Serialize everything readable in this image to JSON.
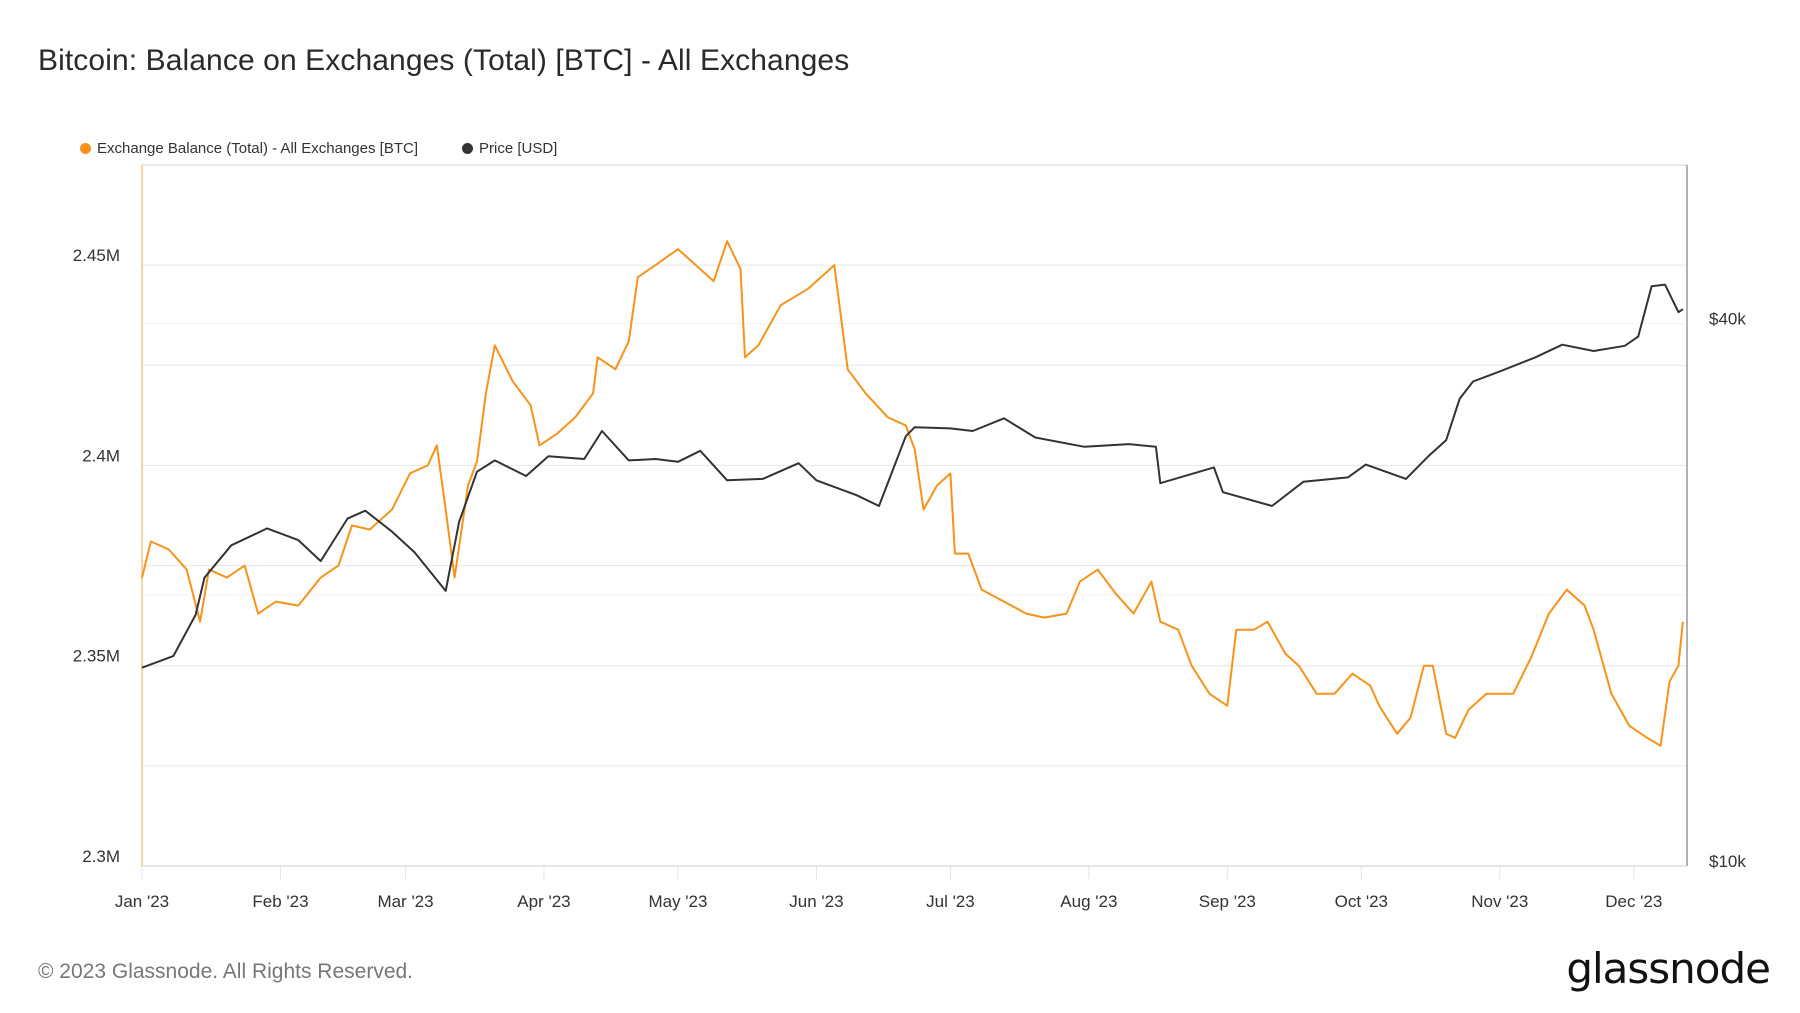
{
  "title": "Bitcoin: Balance on Exchanges (Total) [BTC] - All Exchanges",
  "footer": "© 2023 Glassnode. All Rights Reserved.",
  "logo": "glassnode",
  "colors": {
    "balance": "#f7931a",
    "price": "#333333",
    "grid": "#e6e6e6"
  },
  "chart_data": {
    "type": "line",
    "title": "Bitcoin: Balance on Exchanges (Total) [BTC] - All Exchanges",
    "legend_position": "top-left",
    "grid": true,
    "x_range": [
      "2023-01-01",
      "2023-12-12"
    ],
    "x_ticks": [
      {
        "date": "2023-01-01",
        "label": "Jan '23"
      },
      {
        "date": "2023-02-01",
        "label": "Feb '23"
      },
      {
        "date": "2023-03-01",
        "label": "Mar '23"
      },
      {
        "date": "2023-04-01",
        "label": "Apr '23"
      },
      {
        "date": "2023-05-01",
        "label": "May '23"
      },
      {
        "date": "2023-06-01",
        "label": "Jun '23"
      },
      {
        "date": "2023-07-01",
        "label": "Jul '23"
      },
      {
        "date": "2023-08-01",
        "label": "Aug '23"
      },
      {
        "date": "2023-09-01",
        "label": "Sep '23"
      },
      {
        "date": "2023-10-01",
        "label": "Oct '23"
      },
      {
        "date": "2023-11-01",
        "label": "Nov '23"
      },
      {
        "date": "2023-12-01",
        "label": "Dec '23"
      }
    ],
    "y_left": {
      "scale": "linear",
      "range": [
        2300000,
        2475000
      ],
      "ticks": [
        {
          "value": 2300000,
          "label": "2.3M"
        },
        {
          "value": 2350000,
          "label": "2.35M"
        },
        {
          "value": 2400000,
          "label": "2.4M"
        },
        {
          "value": 2450000,
          "label": "2.45M"
        }
      ],
      "gridlines": [
        2325000,
        2350000,
        2375000,
        2400000,
        2425000,
        2450000
      ]
    },
    "y_right": {
      "scale": "log",
      "range": [
        10000,
        60000
      ],
      "ticks": [
        {
          "value": 10000,
          "label": "$10k"
        },
        {
          "value": 40000,
          "label": "$40k"
        }
      ],
      "gridlines": [
        20000,
        40000
      ]
    },
    "series": [
      {
        "name": "Exchange Balance (Total) - All Exchanges [BTC]",
        "axis": "left",
        "color": "#f7931a",
        "points": [
          [
            "2023-01-01",
            2372000
          ],
          [
            "2023-01-03",
            2381000
          ],
          [
            "2023-01-07",
            2379000
          ],
          [
            "2023-01-11",
            2374000
          ],
          [
            "2023-01-14",
            2361000
          ],
          [
            "2023-01-16",
            2374000
          ],
          [
            "2023-01-20",
            2372000
          ],
          [
            "2023-01-24",
            2375000
          ],
          [
            "2023-01-27",
            2363000
          ],
          [
            "2023-01-31",
            2366000
          ],
          [
            "2023-02-05",
            2365000
          ],
          [
            "2023-02-10",
            2372000
          ],
          [
            "2023-02-14",
            2375000
          ],
          [
            "2023-02-17",
            2385000
          ],
          [
            "2023-02-21",
            2384000
          ],
          [
            "2023-02-26",
            2389000
          ],
          [
            "2023-03-02",
            2398000
          ],
          [
            "2023-03-06",
            2400000
          ],
          [
            "2023-03-08",
            2405000
          ],
          [
            "2023-03-10",
            2389000
          ],
          [
            "2023-03-12",
            2372000
          ],
          [
            "2023-03-15",
            2395000
          ],
          [
            "2023-03-17",
            2401000
          ],
          [
            "2023-03-19",
            2418000
          ],
          [
            "2023-03-21",
            2430000
          ],
          [
            "2023-03-25",
            2421000
          ],
          [
            "2023-03-29",
            2415000
          ],
          [
            "2023-03-31",
            2405000
          ],
          [
            "2023-04-04",
            2408000
          ],
          [
            "2023-04-08",
            2412000
          ],
          [
            "2023-04-12",
            2418000
          ],
          [
            "2023-04-13",
            2427000
          ],
          [
            "2023-04-17",
            2424000
          ],
          [
            "2023-04-20",
            2431000
          ],
          [
            "2023-04-22",
            2447000
          ],
          [
            "2023-04-26",
            2450000
          ],
          [
            "2023-05-01",
            2454000
          ],
          [
            "2023-05-05",
            2450000
          ],
          [
            "2023-05-09",
            2446000
          ],
          [
            "2023-05-12",
            2456000
          ],
          [
            "2023-05-15",
            2449000
          ],
          [
            "2023-05-16",
            2427000
          ],
          [
            "2023-05-19",
            2430000
          ],
          [
            "2023-05-24",
            2440000
          ],
          [
            "2023-05-30",
            2444000
          ],
          [
            "2023-06-02",
            2447000
          ],
          [
            "2023-06-05",
            2450000
          ],
          [
            "2023-06-08",
            2424000
          ],
          [
            "2023-06-12",
            2418000
          ],
          [
            "2023-06-17",
            2412000
          ],
          [
            "2023-06-21",
            2410000
          ],
          [
            "2023-06-23",
            2404000
          ],
          [
            "2023-06-25",
            2389000
          ],
          [
            "2023-06-28",
            2395000
          ],
          [
            "2023-07-01",
            2398000
          ],
          [
            "2023-07-02",
            2378000
          ],
          [
            "2023-07-05",
            2378000
          ],
          [
            "2023-07-08",
            2369000
          ],
          [
            "2023-07-13",
            2366000
          ],
          [
            "2023-07-18",
            2363000
          ],
          [
            "2023-07-22",
            2362000
          ],
          [
            "2023-07-27",
            2363000
          ],
          [
            "2023-07-30",
            2371000
          ],
          [
            "2023-08-03",
            2374000
          ],
          [
            "2023-08-07",
            2368000
          ],
          [
            "2023-08-11",
            2363000
          ],
          [
            "2023-08-15",
            2371000
          ],
          [
            "2023-08-17",
            2361000
          ],
          [
            "2023-08-21",
            2359000
          ],
          [
            "2023-08-24",
            2350000
          ],
          [
            "2023-08-28",
            2343000
          ],
          [
            "2023-09-01",
            2340000
          ],
          [
            "2023-09-03",
            2359000
          ],
          [
            "2023-09-07",
            2359000
          ],
          [
            "2023-09-10",
            2361000
          ],
          [
            "2023-09-14",
            2353000
          ],
          [
            "2023-09-17",
            2350000
          ],
          [
            "2023-09-21",
            2343000
          ],
          [
            "2023-09-25",
            2343000
          ],
          [
            "2023-09-29",
            2348000
          ],
          [
            "2023-10-03",
            2345000
          ],
          [
            "2023-10-05",
            2340000
          ],
          [
            "2023-10-09",
            2333000
          ],
          [
            "2023-10-12",
            2337000
          ],
          [
            "2023-10-15",
            2350000
          ],
          [
            "2023-10-17",
            2350000
          ],
          [
            "2023-10-20",
            2333000
          ],
          [
            "2023-10-22",
            2332000
          ],
          [
            "2023-10-25",
            2339000
          ],
          [
            "2023-10-29",
            2343000
          ],
          [
            "2023-11-04",
            2343000
          ],
          [
            "2023-11-08",
            2352000
          ],
          [
            "2023-11-12",
            2363000
          ],
          [
            "2023-11-16",
            2369000
          ],
          [
            "2023-11-20",
            2365000
          ],
          [
            "2023-11-22",
            2359000
          ],
          [
            "2023-11-26",
            2343000
          ],
          [
            "2023-11-30",
            2335000
          ],
          [
            "2023-12-04",
            2332000
          ],
          [
            "2023-12-07",
            2330000
          ],
          [
            "2023-12-09",
            2346000
          ],
          [
            "2023-12-11",
            2350000
          ],
          [
            "2023-12-12",
            2361000
          ]
        ]
      },
      {
        "name": "Price [USD]",
        "axis": "right",
        "color": "#333333",
        "points": [
          [
            "2023-01-01",
            16600
          ],
          [
            "2023-01-08",
            17100
          ],
          [
            "2023-01-13",
            19000
          ],
          [
            "2023-01-15",
            20900
          ],
          [
            "2023-01-21",
            22700
          ],
          [
            "2023-01-29",
            23700
          ],
          [
            "2023-02-05",
            23000
          ],
          [
            "2023-02-10",
            21800
          ],
          [
            "2023-02-16",
            24300
          ],
          [
            "2023-02-20",
            24800
          ],
          [
            "2023-02-26",
            23500
          ],
          [
            "2023-03-03",
            22300
          ],
          [
            "2023-03-10",
            20200
          ],
          [
            "2023-03-13",
            24100
          ],
          [
            "2023-03-17",
            27400
          ],
          [
            "2023-03-21",
            28200
          ],
          [
            "2023-03-28",
            27100
          ],
          [
            "2023-04-02",
            28500
          ],
          [
            "2023-04-10",
            28300
          ],
          [
            "2023-04-14",
            30400
          ],
          [
            "2023-04-20",
            28200
          ],
          [
            "2023-04-26",
            28300
          ],
          [
            "2023-05-01",
            28100
          ],
          [
            "2023-05-06",
            28900
          ],
          [
            "2023-05-12",
            26800
          ],
          [
            "2023-05-20",
            26900
          ],
          [
            "2023-05-28",
            28000
          ],
          [
            "2023-06-01",
            26800
          ],
          [
            "2023-06-10",
            25800
          ],
          [
            "2023-06-15",
            25100
          ],
          [
            "2023-06-21",
            30000
          ],
          [
            "2023-06-23",
            30700
          ],
          [
            "2023-07-01",
            30600
          ],
          [
            "2023-07-06",
            30400
          ],
          [
            "2023-07-13",
            31400
          ],
          [
            "2023-07-20",
            29900
          ],
          [
            "2023-07-31",
            29200
          ],
          [
            "2023-08-10",
            29400
          ],
          [
            "2023-08-16",
            29200
          ],
          [
            "2023-08-17",
            26600
          ],
          [
            "2023-08-29",
            27700
          ],
          [
            "2023-08-31",
            26000
          ],
          [
            "2023-09-11",
            25100
          ],
          [
            "2023-09-18",
            26700
          ],
          [
            "2023-09-28",
            27000
          ],
          [
            "2023-10-02",
            27900
          ],
          [
            "2023-10-11",
            26900
          ],
          [
            "2023-10-16",
            28500
          ],
          [
            "2023-10-20",
            29700
          ],
          [
            "2023-10-23",
            33000
          ],
          [
            "2023-10-26",
            34500
          ],
          [
            "2023-11-01",
            35400
          ],
          [
            "2023-11-09",
            36700
          ],
          [
            "2023-11-15",
            37900
          ],
          [
            "2023-11-22",
            37300
          ],
          [
            "2023-11-29",
            37800
          ],
          [
            "2023-12-02",
            38700
          ],
          [
            "2023-12-05",
            44000
          ],
          [
            "2023-12-08",
            44200
          ],
          [
            "2023-12-11",
            41200
          ],
          [
            "2023-12-12",
            41500
          ]
        ]
      }
    ]
  }
}
